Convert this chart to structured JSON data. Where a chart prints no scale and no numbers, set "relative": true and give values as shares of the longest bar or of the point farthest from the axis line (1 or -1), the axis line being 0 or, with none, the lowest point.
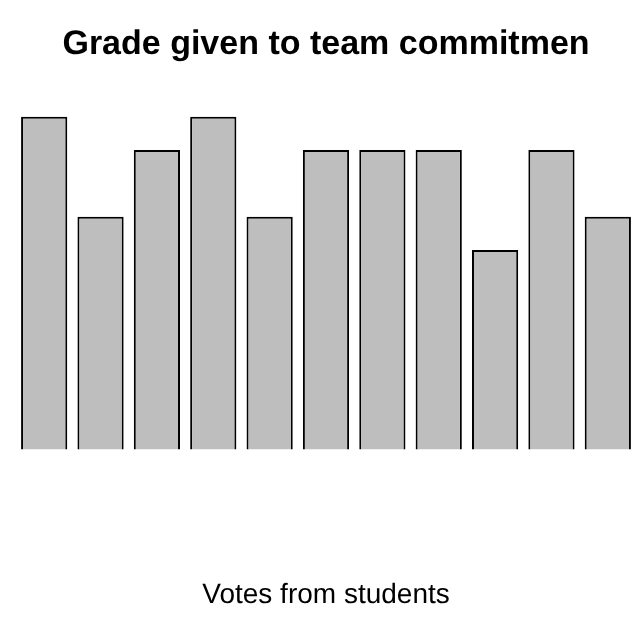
{
  "chart_data": {
    "type": "bar",
    "title": "Grade given to team commitmen",
    "xlabel": "Votes from students",
    "relative": true,
    "color": "#bebebe",
    "categories": [
      null,
      null,
      null,
      null,
      null,
      null,
      null,
      null,
      null,
      null,
      null
    ],
    "values": [
      1,
      0.7,
      0.9,
      1,
      0.7,
      0.9,
      0.9,
      0.9,
      0.6,
      0.9,
      0.7
    ],
    "grid": false,
    "legend": false
  }
}
